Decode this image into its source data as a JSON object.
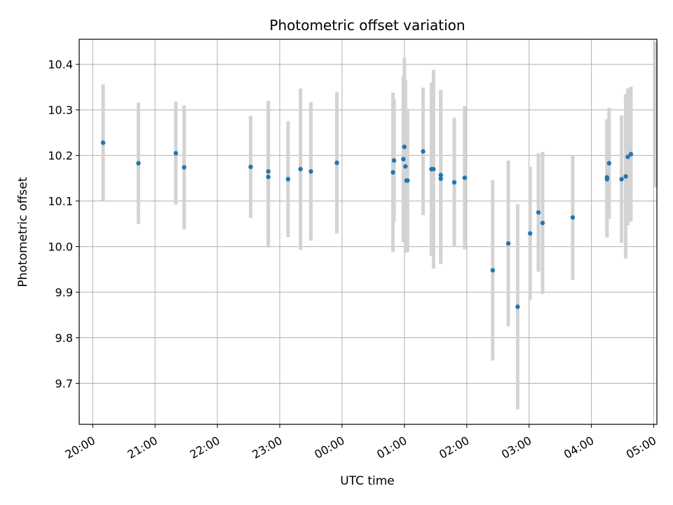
{
  "chart_data": {
    "type": "scatter",
    "title": "Photometric offset variation",
    "xlabel": "UTC time",
    "ylabel": "Photometric offset",
    "x_tick_labels": [
      "20:00",
      "21:00",
      "22:00",
      "23:00",
      "00:00",
      "01:00",
      "02:00",
      "03:00",
      "04:00",
      "05:00"
    ],
    "y_ticks": [
      9.7,
      9.8,
      9.9,
      10.0,
      10.1,
      10.2,
      10.3,
      10.4
    ],
    "y_tick_labels": [
      "9.7",
      "9.8",
      "9.9",
      "10.0",
      "10.1",
      "10.2",
      "10.3",
      "10.4"
    ],
    "xlim": [
      "2019-01-01T19:47:00",
      "2019-01-02T05:03:00"
    ],
    "ylim": [
      9.61,
      10.455
    ],
    "grid": true,
    "colors": {
      "points": "#1f77b4",
      "errorbars": "#d3d3d3",
      "grid": "#b0b0b0"
    },
    "points": [
      {
        "t": "2019-01-01T20:10:00",
        "y": 10.228,
        "err": 0.128
      },
      {
        "t": "2019-01-01T20:44:00",
        "y": 10.183,
        "err": 0.133
      },
      {
        "t": "2019-01-01T21:20:00",
        "y": 10.205,
        "err": 0.113
      },
      {
        "t": "2019-01-01T21:28:00",
        "y": 10.174,
        "err": 0.136
      },
      {
        "t": "2019-01-01T22:32:00",
        "y": 10.175,
        "err": 0.112
      },
      {
        "t": "2019-01-01T22:49:00",
        "y": 10.165,
        "err": 0.155
      },
      {
        "t": "2019-01-01T22:49:00",
        "y": 10.153,
        "err": 0.155
      },
      {
        "t": "2019-01-01T23:08:00",
        "y": 10.148,
        "err": 0.127
      },
      {
        "t": "2019-01-01T23:20:00",
        "y": 10.17,
        "err": 0.177
      },
      {
        "t": "2019-01-01T23:30:00",
        "y": 10.165,
        "err": 0.152
      },
      {
        "t": "2019-01-01T23:55:00",
        "y": 10.184,
        "err": 0.155
      },
      {
        "t": "2019-01-02T00:49:00",
        "y": 10.163,
        "err": 0.175
      },
      {
        "t": "2019-01-02T00:50:00",
        "y": 10.189,
        "err": 0.135
      },
      {
        "t": "2019-01-02T00:59:00",
        "y": 10.192,
        "err": 0.182
      },
      {
        "t": "2019-01-02T01:00:00",
        "y": 10.219,
        "err": 0.195
      },
      {
        "t": "2019-01-02T01:01:00",
        "y": 10.176,
        "err": 0.19
      },
      {
        "t": "2019-01-02T01:02:00",
        "y": 10.145,
        "err": 0.157
      },
      {
        "t": "2019-01-02T01:03:00",
        "y": 10.145,
        "err": 0.157
      },
      {
        "t": "2019-01-02T01:18:00",
        "y": 10.209,
        "err": 0.14
      },
      {
        "t": "2019-01-02T01:26:00",
        "y": 10.17,
        "err": 0.19
      },
      {
        "t": "2019-01-02T01:28:00",
        "y": 10.17,
        "err": 0.218
      },
      {
        "t": "2019-01-02T01:35:00",
        "y": 10.157,
        "err": 0.187
      },
      {
        "t": "2019-01-02T01:35:00",
        "y": 10.149,
        "err": 0.187
      },
      {
        "t": "2019-01-02T01:48:00",
        "y": 10.141,
        "err": 0.142
      },
      {
        "t": "2019-01-02T01:58:00",
        "y": 10.151,
        "err": 0.157
      },
      {
        "t": "2019-01-02T02:25:00",
        "y": 9.948,
        "err": 0.198
      },
      {
        "t": "2019-01-02T02:40:00",
        "y": 10.007,
        "err": 0.182
      },
      {
        "t": "2019-01-02T02:49:00",
        "y": 9.868,
        "err": 0.225
      },
      {
        "t": "2019-01-02T03:01:00",
        "y": 10.029,
        "err": 0.146
      },
      {
        "t": "2019-01-02T03:09:00",
        "y": 10.075,
        "err": 0.13
      },
      {
        "t": "2019-01-02T03:13:00",
        "y": 10.052,
        "err": 0.156
      },
      {
        "t": "2019-01-02T03:42:00",
        "y": 10.064,
        "err": 0.137
      },
      {
        "t": "2019-01-02T04:15:00",
        "y": 10.152,
        "err": 0.128
      },
      {
        "t": "2019-01-02T04:15:00",
        "y": 10.148,
        "err": 0.128
      },
      {
        "t": "2019-01-02T04:17:00",
        "y": 10.183,
        "err": 0.122
      },
      {
        "t": "2019-01-02T04:29:00",
        "y": 10.148,
        "err": 0.14
      },
      {
        "t": "2019-01-02T04:33:00",
        "y": 10.154,
        "err": 0.18
      },
      {
        "t": "2019-01-02T04:35:00",
        "y": 10.197,
        "err": 0.15
      },
      {
        "t": "2019-01-02T04:38:00",
        "y": 10.203,
        "err": 0.148
      },
      {
        "t": "2019-01-02T05:02:00",
        "y": 10.29,
        "err": 0.16
      }
    ]
  }
}
